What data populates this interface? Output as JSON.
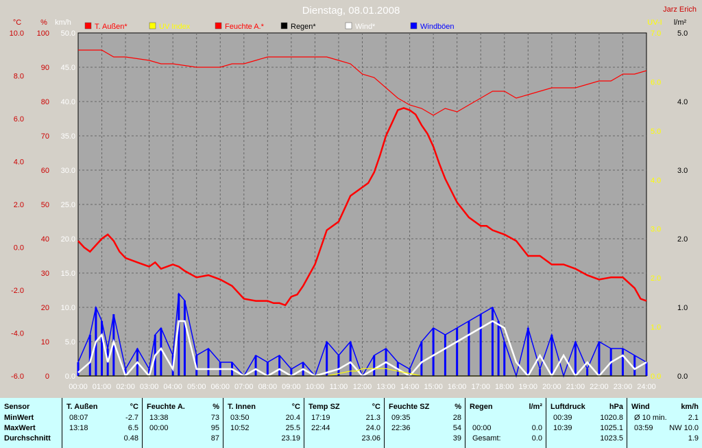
{
  "header": {
    "title": "Dienstag, 08.01.2008",
    "station": "Jarz Erich"
  },
  "legend": [
    {
      "label": "T. Außen*",
      "color": "#ff0000"
    },
    {
      "label": "UV Index",
      "color": "#ffff00"
    },
    {
      "label": "Feuchte A.*",
      "color": "#ff0000"
    },
    {
      "label": "Regen*",
      "color": "#000000"
    },
    {
      "label": "Wind*",
      "color": "#ffffff"
    },
    {
      "label": "Windböen",
      "color": "#0000ff"
    }
  ],
  "colors": {
    "temp_axis": "#cc0000",
    "uv_axis": "#ffff00",
    "plot_bg": "#a8a8a8",
    "table_bg": "#ccffff"
  },
  "axes": {
    "temp": {
      "unit": "°C",
      "ticks": [
        "10.0",
        "8.0",
        "6.0",
        "4.0",
        "2.0",
        "0.0",
        "-2.0",
        "-4.0",
        "-6.0"
      ]
    },
    "humidity": {
      "unit": "%",
      "ticks": [
        "100",
        "90",
        "80",
        "70",
        "60",
        "50",
        "40",
        "30",
        "20",
        "10",
        "0"
      ]
    },
    "wind": {
      "unit": "km/h",
      "ticks": [
        "50.0",
        "45.0",
        "40.0",
        "35.0",
        "30.0",
        "25.0",
        "20.0",
        "15.0",
        "10.0",
        "5.0",
        "0.0"
      ]
    },
    "uv": {
      "unit": "UV-I",
      "ticks": [
        "7.0",
        "6.0",
        "5.0",
        "4.0",
        "3.0",
        "2.0",
        "1.0",
        "0.0"
      ]
    },
    "rain": {
      "unit": "l/m²",
      "ticks": [
        "5.0",
        "4.0",
        "3.0",
        "2.0",
        "1.0",
        "0.0"
      ]
    },
    "time": {
      "ticks": [
        "00:00",
        "01:00",
        "02:00",
        "03:00",
        "04:00",
        "05:00",
        "06:00",
        "07:00",
        "08:00",
        "09:00",
        "10:00",
        "11:00",
        "12:00",
        "13:00",
        "14:00",
        "15:00",
        "16:00",
        "17:00",
        "18:00",
        "19:00",
        "20:00",
        "21:00",
        "22:00",
        "23:00",
        "24:00"
      ]
    }
  },
  "chart_data": {
    "type": "line",
    "title": "Dienstag, 08.01.2008",
    "x_range": [
      "00:00",
      "24:00"
    ],
    "ylims": {
      "temp_c": [
        -6,
        10
      ],
      "humidity_pct": [
        0,
        100
      ],
      "wind_kmh": [
        0,
        50
      ],
      "uv": [
        0,
        7
      ],
      "rain_lm2": [
        0,
        5
      ]
    },
    "grid": true,
    "legend_position": "top",
    "series": [
      {
        "name": "T. Außen*",
        "unit": "°C",
        "color": "#ff0000",
        "x": [
          0,
          0.25,
          0.5,
          0.75,
          1,
          1.25,
          1.5,
          1.75,
          2,
          2.5,
          3,
          3.25,
          3.5,
          4,
          4.25,
          4.5,
          5,
          5.5,
          6,
          6.5,
          7,
          7.5,
          8,
          8.25,
          8.5,
          8.75,
          9,
          9.25,
          9.5,
          10,
          10.25,
          10.5,
          11,
          11.25,
          11.5,
          12,
          12.25,
          12.5,
          12.75,
          13,
          13.25,
          13.5,
          13.75,
          14,
          14.25,
          14.5,
          14.75,
          15,
          15.25,
          15.5,
          16,
          16.5,
          17,
          17.25,
          17.5,
          18,
          18.5,
          19,
          19.5,
          20,
          20.5,
          21,
          21.5,
          22,
          22.5,
          23,
          23.5,
          23.75,
          24
        ],
        "y": [
          0.3,
          0.0,
          -0.2,
          0.1,
          0.4,
          0.6,
          0.3,
          -0.2,
          -0.5,
          -0.7,
          -0.9,
          -0.7,
          -1.0,
          -0.8,
          -0.9,
          -1.1,
          -1.4,
          -1.3,
          -1.5,
          -1.8,
          -2.4,
          -2.5,
          -2.5,
          -2.6,
          -2.6,
          -2.7,
          -2.3,
          -2.2,
          -1.8,
          -0.8,
          0.0,
          0.8,
          1.2,
          1.8,
          2.4,
          2.8,
          3.0,
          3.5,
          4.3,
          5.2,
          5.8,
          6.4,
          6.5,
          6.4,
          6.2,
          5.7,
          5.3,
          4.7,
          3.9,
          3.2,
          2.1,
          1.4,
          1.0,
          1.0,
          0.8,
          0.6,
          0.3,
          -0.4,
          -0.4,
          -0.8,
          -0.8,
          -1.0,
          -1.3,
          -1.5,
          -1.4,
          -1.4,
          -1.9,
          -2.4,
          -2.5
        ]
      },
      {
        "name": "Feuchte A.*",
        "unit": "%",
        "color": "#ff0000",
        "x": [
          0,
          1,
          1.5,
          2,
          3,
          3.5,
          4,
          5,
          6,
          6.5,
          7,
          7.5,
          8,
          9,
          10,
          10.5,
          11,
          11.5,
          12,
          12.5,
          13,
          13.5,
          14,
          14.5,
          15,
          15.5,
          16,
          16.5,
          17,
          17.5,
          18,
          18.5,
          19,
          19.5,
          20,
          21,
          21.5,
          22,
          22.5,
          23,
          23.5,
          24
        ],
        "y": [
          95,
          95,
          93,
          93,
          92,
          91,
          91,
          90,
          90,
          91,
          91,
          92,
          93,
          93,
          93,
          93,
          92,
          91,
          88,
          87,
          84,
          81,
          79,
          78,
          76,
          78,
          77,
          79,
          81,
          83,
          83,
          81,
          82,
          83,
          84,
          84,
          85,
          86,
          86,
          88,
          88,
          89
        ]
      },
      {
        "name": "Windböen",
        "unit": "km/h",
        "color": "#0000ff",
        "values_note": "peaks approx.",
        "x": [
          0,
          0.5,
          0.75,
          1,
          1.25,
          1.5,
          2,
          2.5,
          3,
          3.25,
          3.5,
          4,
          4.25,
          4.5,
          5,
          5.5,
          6,
          6.5,
          7,
          7.5,
          8,
          8.5,
          9,
          9.5,
          10,
          10.5,
          11,
          11.5,
          12,
          12.5,
          13,
          13.5,
          14,
          14.5,
          15,
          15.5,
          16,
          16.5,
          17,
          17.5,
          17.75,
          18,
          18.5,
          19,
          19.5,
          20,
          20.5,
          21,
          21.5,
          22,
          22.5,
          23,
          23.5,
          24
        ],
        "y": [
          2,
          6,
          10,
          8,
          4,
          9,
          1,
          4,
          1,
          6,
          7,
          3,
          12,
          11,
          3,
          4,
          2,
          2,
          0,
          3,
          2,
          3,
          1,
          2,
          0,
          5,
          3,
          5,
          0,
          3,
          4,
          2,
          1,
          5,
          7,
          6,
          7,
          8,
          9,
          10,
          8,
          5,
          0,
          7,
          1,
          6,
          0,
          5,
          1,
          5,
          4,
          4,
          3,
          2
        ]
      },
      {
        "name": "Wind*",
        "unit": "km/h",
        "color": "#ffffff",
        "x": [
          0,
          0.5,
          0.75,
          1,
          1.25,
          1.5,
          2,
          2.5,
          3,
          3.25,
          3.5,
          4,
          4.25,
          4.5,
          5,
          5.5,
          6,
          6.5,
          7,
          7.5,
          8,
          8.5,
          9,
          9.5,
          10,
          10.5,
          11,
          11.5,
          12,
          12.5,
          13,
          13.5,
          14,
          14.5,
          15,
          15.5,
          16,
          16.5,
          17,
          17.5,
          18,
          18.5,
          19,
          19.5,
          20,
          20.5,
          21,
          21.5,
          22,
          22.5,
          23,
          23.5,
          24
        ],
        "y": [
          0.5,
          2,
          5,
          6,
          2,
          5,
          0,
          2,
          0,
          3,
          4,
          1,
          8,
          8,
          1,
          1,
          1,
          1,
          0,
          1,
          0,
          1,
          0,
          1,
          0,
          0.5,
          1,
          2,
          0,
          1,
          2,
          1,
          0,
          2,
          3,
          4,
          5,
          6,
          7,
          8,
          7,
          2,
          0,
          3,
          0,
          3,
          0,
          2,
          0,
          2,
          3,
          1,
          2
        ]
      },
      {
        "name": "UV Index",
        "unit": "UV-I",
        "color": "#ffff00",
        "x": [
          0,
          10.5,
          11,
          11.5,
          11.75,
          12,
          13,
          13.5,
          14,
          14.5,
          24
        ],
        "y": [
          0,
          0,
          0.05,
          0.1,
          0.1,
          0.15,
          0.15,
          0.1,
          0.05,
          0,
          0
        ]
      },
      {
        "name": "Regen*",
        "unit": "l/m²",
        "color": "#000000",
        "x": [
          0,
          24
        ],
        "y": [
          0,
          0
        ]
      }
    ]
  },
  "table": {
    "sensor": {
      "header": "Sensor",
      "rows": [
        "MinWert",
        "MaxWert",
        "Durchschnitt"
      ]
    },
    "groups": [
      {
        "name": "T. Außen",
        "unit": "°C",
        "rows": [
          [
            "08:07",
            "-2.7"
          ],
          [
            "13:18",
            "6.5"
          ],
          [
            "",
            "0.48"
          ]
        ]
      },
      {
        "name": "Feuchte A.",
        "unit": "%",
        "rows": [
          [
            "13:38",
            "73"
          ],
          [
            "00:00",
            "95"
          ],
          [
            "",
            "87"
          ]
        ]
      },
      {
        "name": "T. Innen",
        "unit": "°C",
        "rows": [
          [
            "03:50",
            "20.4"
          ],
          [
            "10:52",
            "25.5"
          ],
          [
            "",
            "23.19"
          ]
        ]
      },
      {
        "name": "Temp SZ",
        "unit": "°C",
        "rows": [
          [
            "17:19",
            "21.3"
          ],
          [
            "22:44",
            "24.0"
          ],
          [
            "",
            "23.06"
          ]
        ]
      },
      {
        "name": "Feuchte SZ",
        "unit": "%",
        "rows": [
          [
            "09:35",
            "28"
          ],
          [
            "22:36",
            "54"
          ],
          [
            "",
            "39"
          ]
        ]
      },
      {
        "name": "Regen",
        "unit": "l/m²",
        "rows": [
          [
            "",
            ""
          ],
          [
            "00:00",
            "0.0"
          ],
          [
            "Gesamt:",
            "0.0"
          ]
        ]
      },
      {
        "name": "Luftdruck",
        "unit": "hPa",
        "rows": [
          [
            "00:39",
            "1020.8"
          ],
          [
            "10:39",
            "1025.1"
          ],
          [
            "",
            "1023.5"
          ]
        ]
      },
      {
        "name": "Wind",
        "unit": "km/h",
        "rows": [
          [
            "Ø 10 min.",
            "2.1"
          ],
          [
            "03:59",
            "NW 10.0"
          ],
          [
            "",
            "1.9"
          ]
        ]
      }
    ]
  }
}
